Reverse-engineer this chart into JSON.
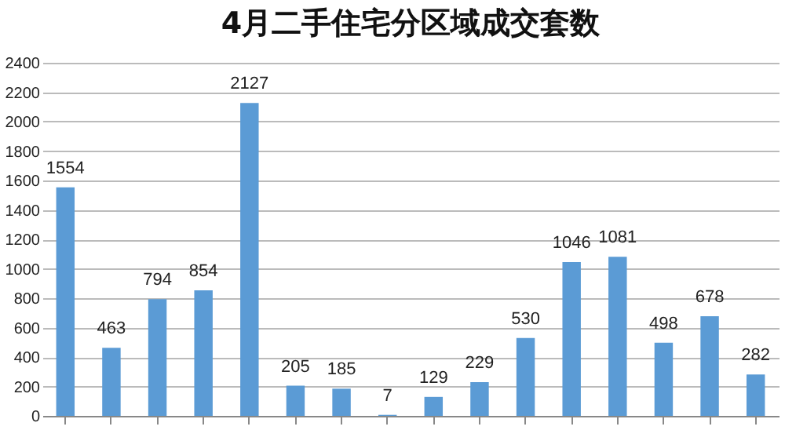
{
  "chart_data": {
    "type": "bar",
    "title": "4月二手住宅分区域成交套数",
    "categories": [
      null,
      null,
      null,
      null,
      null,
      null,
      null,
      null,
      null,
      null,
      null,
      null,
      null,
      null,
      null,
      null
    ],
    "values": [
      1554,
      463,
      794,
      854,
      2127,
      205,
      185,
      7,
      129,
      229,
      530,
      1046,
      1081,
      498,
      678,
      282
    ],
    "color": "#5b9bd5",
    "ylim": [
      0,
      2400
    ],
    "yticks": [
      0,
      200,
      400,
      600,
      800,
      1000,
      1200,
      1400,
      1600,
      1800,
      2000,
      2200,
      2400
    ],
    "grid": "y",
    "data_labels": true
  }
}
